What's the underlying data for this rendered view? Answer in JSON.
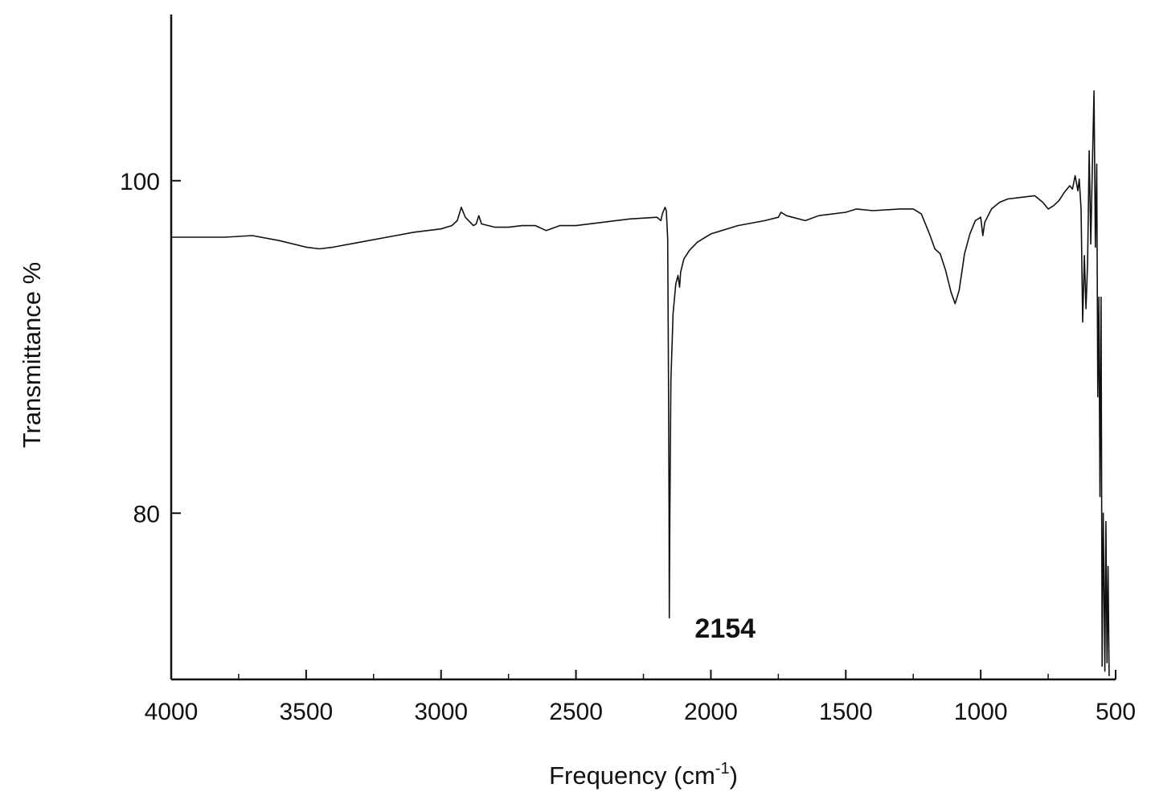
{
  "chart_data": {
    "type": "line",
    "title": "",
    "xlabel": "Frequency (cm",
    "xlabel_superscript": "-1",
    "xlabel_suffix": ")",
    "ylabel": "Transmittance %",
    "xlim": [
      4000,
      500
    ],
    "ylim": [
      70,
      110
    ],
    "x_reversed": true,
    "grid": false,
    "legend": "none",
    "x_ticks": [
      4000,
      3500,
      3000,
      2500,
      2000,
      1500,
      1000,
      500
    ],
    "x_tick_labels": [
      "4000",
      "3500",
      "3000",
      "2500",
      "2000",
      "1500",
      "1000",
      "500"
    ],
    "y_ticks": [
      80,
      100
    ],
    "y_tick_labels": [
      "80",
      "100"
    ],
    "annotations": [
      {
        "text": "2154",
        "x": 2000,
        "y": 73
      }
    ],
    "line_color": "#111111",
    "series": [
      {
        "points": [
          [
            4000,
            96.6
          ],
          [
            3900,
            96.6
          ],
          [
            3800,
            96.6
          ],
          [
            3700,
            96.7
          ],
          [
            3600,
            96.4
          ],
          [
            3500,
            96.0
          ],
          [
            3450,
            95.9
          ],
          [
            3400,
            96.0
          ],
          [
            3300,
            96.3
          ],
          [
            3200,
            96.6
          ],
          [
            3100,
            96.9
          ],
          [
            3000,
            97.1
          ],
          [
            2960,
            97.3
          ],
          [
            2940,
            97.6
          ],
          [
            2925,
            98.4
          ],
          [
            2910,
            97.8
          ],
          [
            2880,
            97.3
          ],
          [
            2870,
            97.4
          ],
          [
            2860,
            97.9
          ],
          [
            2850,
            97.4
          ],
          [
            2800,
            97.2
          ],
          [
            2750,
            97.2
          ],
          [
            2700,
            97.3
          ],
          [
            2650,
            97.3
          ],
          [
            2610,
            97.0
          ],
          [
            2560,
            97.3
          ],
          [
            2500,
            97.3
          ],
          [
            2400,
            97.5
          ],
          [
            2300,
            97.7
          ],
          [
            2200,
            97.8
          ],
          [
            2185,
            97.6
          ],
          [
            2180,
            98.0
          ],
          [
            2170,
            98.4
          ],
          [
            2165,
            98.2
          ],
          [
            2160,
            96.5
          ],
          [
            2157,
            88.0
          ],
          [
            2155,
            80.0
          ],
          [
            2154,
            73.7
          ],
          [
            2152,
            80.0
          ],
          [
            2148,
            88.0
          ],
          [
            2140,
            92.0
          ],
          [
            2130,
            93.8
          ],
          [
            2122,
            94.3
          ],
          [
            2116,
            93.6
          ],
          [
            2112,
            94.5
          ],
          [
            2100,
            95.3
          ],
          [
            2080,
            95.8
          ],
          [
            2050,
            96.3
          ],
          [
            2000,
            96.8
          ],
          [
            1900,
            97.3
          ],
          [
            1800,
            97.6
          ],
          [
            1750,
            97.8
          ],
          [
            1740,
            98.1
          ],
          [
            1720,
            97.9
          ],
          [
            1650,
            97.6
          ],
          [
            1600,
            97.9
          ],
          [
            1500,
            98.1
          ],
          [
            1460,
            98.3
          ],
          [
            1400,
            98.2
          ],
          [
            1300,
            98.3
          ],
          [
            1250,
            98.3
          ],
          [
            1220,
            98.0
          ],
          [
            1190,
            96.8
          ],
          [
            1170,
            95.9
          ],
          [
            1150,
            95.6
          ],
          [
            1130,
            94.6
          ],
          [
            1110,
            93.3
          ],
          [
            1095,
            92.6
          ],
          [
            1080,
            93.4
          ],
          [
            1060,
            95.6
          ],
          [
            1040,
            96.8
          ],
          [
            1020,
            97.6
          ],
          [
            1000,
            97.8
          ],
          [
            992,
            96.7
          ],
          [
            985,
            97.5
          ],
          [
            960,
            98.3
          ],
          [
            930,
            98.7
          ],
          [
            900,
            98.9
          ],
          [
            850,
            99.0
          ],
          [
            800,
            99.1
          ],
          [
            770,
            98.7
          ],
          [
            750,
            98.3
          ],
          [
            730,
            98.5
          ],
          [
            710,
            98.8
          ],
          [
            690,
            99.3
          ],
          [
            670,
            99.7
          ],
          [
            660,
            99.5
          ],
          [
            650,
            100.3
          ],
          [
            640,
            99.4
          ],
          [
            635,
            100.1
          ],
          [
            628,
            98.3
          ],
          [
            622,
            91.5
          ],
          [
            616,
            95.5
          ],
          [
            610,
            92.3
          ],
          [
            604,
            95.0
          ],
          [
            598,
            101.8
          ],
          [
            592,
            96.2
          ],
          [
            586,
            101.0
          ],
          [
            580,
            105.4
          ],
          [
            575,
            96.0
          ],
          [
            570,
            101.0
          ],
          [
            566,
            87.0
          ],
          [
            562,
            93.0
          ],
          [
            558,
            81.0
          ],
          [
            554,
            93.0
          ],
          [
            550,
            70.8
          ],
          [
            546,
            80.0
          ],
          [
            540,
            70.5
          ],
          [
            536,
            79.5
          ],
          [
            532,
            71.0
          ],
          [
            528,
            76.8
          ],
          [
            524,
            70.2
          ]
        ]
      }
    ]
  }
}
